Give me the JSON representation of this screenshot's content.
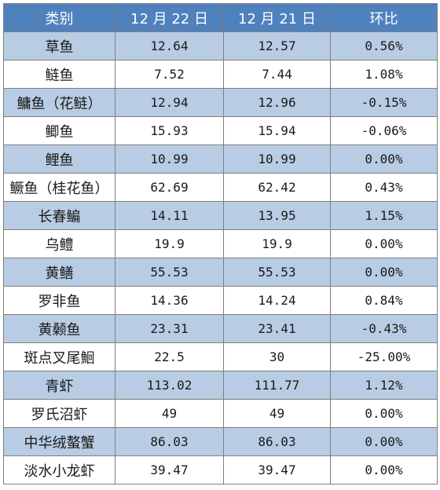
{
  "table": {
    "headers": [
      "类别",
      "12 月 22 日",
      "12 月 21 日",
      "环比"
    ],
    "rows": [
      [
        "草鱼",
        "12.64",
        "12.57",
        "0.56%"
      ],
      [
        "鲢鱼",
        "7.52",
        "7.44",
        "1.08%"
      ],
      [
        "鳙鱼（花鲢）",
        "12.94",
        "12.96",
        "-0.15%"
      ],
      [
        "鲫鱼",
        "15.93",
        "15.94",
        "-0.06%"
      ],
      [
        "鲤鱼",
        "10.99",
        "10.99",
        "0.00%"
      ],
      [
        "鳜鱼（桂花鱼）",
        "62.69",
        "62.42",
        "0.43%"
      ],
      [
        "长春鳊",
        "14.11",
        "13.95",
        "1.15%"
      ],
      [
        "乌鳢",
        "19.9",
        "19.9",
        "0.00%"
      ],
      [
        "黄鳝",
        "55.53",
        "55.53",
        "0.00%"
      ],
      [
        "罗非鱼",
        "14.36",
        "14.24",
        "0.84%"
      ],
      [
        "黄颡鱼",
        "23.31",
        "23.41",
        "-0.43%"
      ],
      [
        "斑点叉尾鮰",
        "22.5",
        "30",
        "-25.00%"
      ],
      [
        "青虾",
        "113.02",
        "111.77",
        "1.12%"
      ],
      [
        "罗氏沼虾",
        "49",
        "49",
        "0.00%"
      ],
      [
        "中华绒螯蟹",
        "86.03",
        "86.03",
        "0.00%"
      ],
      [
        "淡水小龙虾",
        "39.47",
        "39.47",
        "0.00%"
      ]
    ]
  },
  "colors": {
    "header_bg": "#4f81bd",
    "header_text": "#ffffff",
    "band_row_bg": "#b8cce4",
    "plain_row_bg": "#ffffff",
    "border": "#7f7f7f"
  }
}
